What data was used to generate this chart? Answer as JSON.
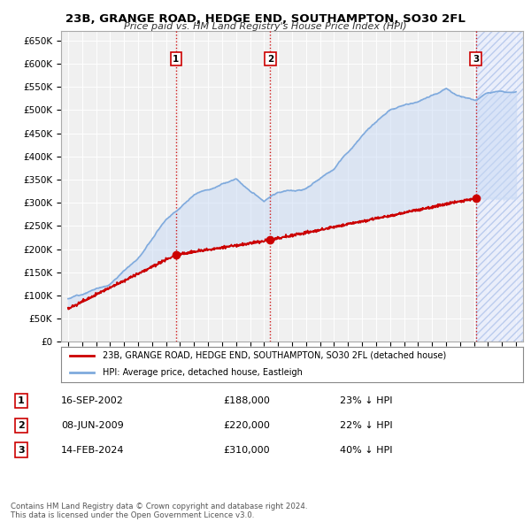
{
  "title": "23B, GRANGE ROAD, HEDGE END, SOUTHAMPTON, SO30 2FL",
  "subtitle": "Price paid vs. HM Land Registry's House Price Index (HPI)",
  "ylim": [
    0,
    670000
  ],
  "yticks": [
    0,
    50000,
    100000,
    150000,
    200000,
    250000,
    300000,
    350000,
    400000,
    450000,
    500000,
    550000,
    600000,
    650000
  ],
  "ytick_labels": [
    "£0",
    "£50K",
    "£100K",
    "£150K",
    "£200K",
    "£250K",
    "£300K",
    "£350K",
    "£400K",
    "£450K",
    "£500K",
    "£550K",
    "£600K",
    "£650K"
  ],
  "xlim_start": 1994.5,
  "xlim_end": 2027.5,
  "bg_color": "#ffffff",
  "plot_bg_color": "#f0f0f0",
  "grid_color": "#ffffff",
  "sale_dates": [
    2002.71,
    2009.44,
    2024.12
  ],
  "sale_prices": [
    188000,
    220000,
    310000
  ],
  "sale_labels": [
    "1",
    "2",
    "3"
  ],
  "vline_color": "#cc0000",
  "hpi_color": "#7faadd",
  "price_color": "#cc0000",
  "shade_color": "#c8daf5",
  "legend_house_label": "23B, GRANGE ROAD, HEDGE END, SOUTHAMPTON, SO30 2FL (detached house)",
  "legend_hpi_label": "HPI: Average price, detached house, Eastleigh",
  "table_rows": [
    [
      "1",
      "16-SEP-2002",
      "£188,000",
      "23% ↓ HPI"
    ],
    [
      "2",
      "08-JUN-2009",
      "£220,000",
      "22% ↓ HPI"
    ],
    [
      "3",
      "14-FEB-2024",
      "£310,000",
      "40% ↓ HPI"
    ]
  ],
  "footer": "Contains HM Land Registry data © Crown copyright and database right 2024.\nThis data is licensed under the Open Government Licence v3.0."
}
